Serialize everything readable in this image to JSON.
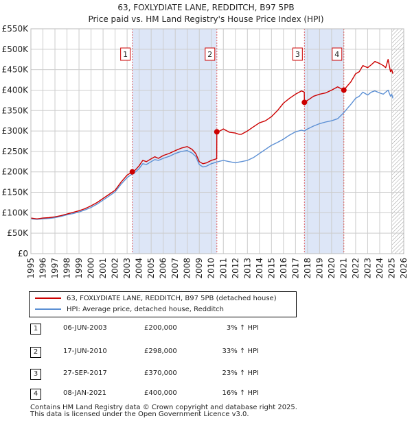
{
  "chart_data": {
    "type": "line",
    "title": "63, FOXLYDIATE LANE, REDDITCH, B97 5PB",
    "subtitle": "Price paid vs. HM Land Registry's House Price Index (HPI)",
    "xlim": [
      1995,
      2026
    ],
    "ylim": [
      0,
      550000
    ],
    "x_ticks": [
      "1995",
      "1996",
      "1997",
      "1998",
      "1999",
      "2000",
      "2001",
      "2002",
      "2003",
      "2004",
      "2005",
      "2006",
      "2007",
      "2008",
      "2009",
      "2010",
      "2011",
      "2012",
      "2013",
      "2014",
      "2015",
      "2016",
      "2017",
      "2018",
      "2019",
      "2020",
      "2021",
      "2022",
      "2023",
      "2024",
      "2025",
      "2026"
    ],
    "y_ticks": [
      {
        "value": 0,
        "label": "£0"
      },
      {
        "value": 50000,
        "label": "£50K"
      },
      {
        "value": 100000,
        "label": "£100K"
      },
      {
        "value": 150000,
        "label": "£150K"
      },
      {
        "value": 200000,
        "label": "£200K"
      },
      {
        "value": 250000,
        "label": "£250K"
      },
      {
        "value": 300000,
        "label": "£300K"
      },
      {
        "value": 350000,
        "label": "£350K"
      },
      {
        "value": 400000,
        "label": "£400K"
      },
      {
        "value": 450000,
        "label": "£450K"
      },
      {
        "value": 500000,
        "label": "£500K"
      },
      {
        "value": 550000,
        "label": "£550K"
      }
    ],
    "series": [
      {
        "name": "63, FOXLYDIATE LANE, REDDITCH, B97 5PB (detached house)",
        "color": "#cc0000",
        "x": [
          1995.0,
          1995.5,
          1996.0,
          1996.5,
          1997.0,
          1997.5,
          1998.0,
          1998.5,
          1999.0,
          1999.5,
          2000.0,
          2000.5,
          2001.0,
          2001.5,
          2002.0,
          2002.5,
          2003.0,
          2003.43,
          2003.7,
          2004.0,
          2004.3,
          2004.6,
          2005.0,
          2005.3,
          2005.6,
          2006.0,
          2006.5,
          2007.0,
          2007.5,
          2008.0,
          2008.4,
          2008.7,
          2009.0,
          2009.3,
          2009.6,
          2010.0,
          2010.45,
          2010.46,
          2010.7,
          2011.0,
          2011.5,
          2012.0,
          2012.3,
          2012.5,
          2013.0,
          2013.5,
          2014.0,
          2014.5,
          2015.0,
          2015.5,
          2016.0,
          2016.5,
          2017.0,
          2017.5,
          2017.73,
          2017.74,
          2018.0,
          2018.5,
          2019.0,
          2019.5,
          2020.0,
          2020.5,
          2021.02,
          2021.3,
          2021.6,
          2022.0,
          2022.3,
          2022.6,
          2023.0,
          2023.3,
          2023.6,
          2024.0,
          2024.3,
          2024.5,
          2024.7,
          2024.9,
          2025.0,
          2025.1
        ],
        "y": [
          87000,
          85000,
          87000,
          88000,
          90000,
          93000,
          97000,
          101000,
          105000,
          110000,
          117000,
          125000,
          135000,
          145000,
          155000,
          175000,
          192000,
          200000,
          205000,
          215000,
          228000,
          225000,
          232000,
          237000,
          233000,
          240000,
          245000,
          252000,
          258000,
          262000,
          255000,
          245000,
          225000,
          220000,
          222000,
          228000,
          232000,
          298000,
          300000,
          305000,
          297000,
          295000,
          292000,
          292000,
          300000,
          310000,
          320000,
          325000,
          335000,
          350000,
          368000,
          380000,
          390000,
          398000,
          395000,
          370000,
          375000,
          385000,
          390000,
          393000,
          400000,
          408000,
          400000,
          410000,
          420000,
          440000,
          445000,
          460000,
          455000,
          462000,
          470000,
          465000,
          460000,
          455000,
          475000,
          445000,
          450000,
          440000
        ]
      },
      {
        "name": "HPI: Average price, detached house, Redditch",
        "color": "#5b8fd4",
        "x": [
          1995.0,
          1995.5,
          1996.0,
          1996.5,
          1997.0,
          1997.5,
          1998.0,
          1998.5,
          1999.0,
          1999.5,
          2000.0,
          2000.5,
          2001.0,
          2001.5,
          2002.0,
          2002.5,
          2003.0,
          2003.43,
          2003.7,
          2004.0,
          2004.3,
          2004.6,
          2005.0,
          2005.3,
          2005.6,
          2006.0,
          2006.5,
          2007.0,
          2007.5,
          2008.0,
          2008.4,
          2008.7,
          2009.0,
          2009.3,
          2009.6,
          2010.0,
          2010.45,
          2010.7,
          2011.0,
          2011.5,
          2012.0,
          2012.3,
          2012.5,
          2013.0,
          2013.5,
          2014.0,
          2014.5,
          2015.0,
          2015.5,
          2016.0,
          2016.5,
          2017.0,
          2017.5,
          2017.73,
          2018.0,
          2018.5,
          2019.0,
          2019.5,
          2020.0,
          2020.5,
          2021.02,
          2021.3,
          2021.6,
          2022.0,
          2022.3,
          2022.6,
          2023.0,
          2023.3,
          2023.6,
          2024.0,
          2024.3,
          2024.5,
          2024.7,
          2024.9,
          2025.0,
          2025.1
        ],
        "y": [
          85000,
          84000,
          85000,
          86000,
          88000,
          91000,
          95000,
          98000,
          102000,
          107000,
          113000,
          121000,
          131000,
          141000,
          151000,
          170000,
          186000,
          195000,
          200000,
          208000,
          220000,
          218000,
          225000,
          230000,
          228000,
          233000,
          238000,
          245000,
          250000,
          252000,
          246000,
          238000,
          218000,
          212000,
          214000,
          220000,
          224000,
          226000,
          228000,
          225000,
          222000,
          224000,
          225000,
          228000,
          235000,
          245000,
          255000,
          265000,
          272000,
          280000,
          290000,
          298000,
          302000,
          300000,
          305000,
          312000,
          318000,
          322000,
          325000,
          330000,
          345000,
          355000,
          365000,
          380000,
          385000,
          395000,
          388000,
          395000,
          398000,
          393000,
          390000,
          395000,
          400000,
          385000,
          390000,
          380000
        ]
      }
    ],
    "sales": [
      {
        "label": "1",
        "x": 2003.43,
        "y": 200000
      },
      {
        "label": "2",
        "x": 2010.46,
        "y": 298000
      },
      {
        "label": "3",
        "x": 2017.74,
        "y": 370000
      },
      {
        "label": "4",
        "x": 2021.02,
        "y": 400000
      }
    ],
    "shaded_periods": [
      [
        2003.43,
        2010.46
      ],
      [
        2017.74,
        2021.02
      ]
    ],
    "hatched_from": 2025.0
  },
  "colors": {
    "property_line": "#cc0000",
    "hpi_line": "#5b8fd4",
    "shade": "#dde6f7",
    "grid": "#cccccc",
    "vline": "#e06060"
  },
  "legend": {
    "property_label": "63, FOXLYDIATE LANE, REDDITCH, B97 5PB (detached house)",
    "hpi_label": "HPI: Average price, detached house, Redditch"
  },
  "sales_table": [
    {
      "num": "1",
      "date": "06-JUN-2003",
      "price": "£200,000",
      "pct": "3% ↑ HPI"
    },
    {
      "num": "2",
      "date": "17-JUN-2010",
      "price": "£298,000",
      "pct": "33% ↑ HPI"
    },
    {
      "num": "3",
      "date": "27-SEP-2017",
      "price": "£370,000",
      "pct": "23% ↑ HPI"
    },
    {
      "num": "4",
      "date": "08-JAN-2021",
      "price": "£400,000",
      "pct": "16% ↑ HPI"
    }
  ],
  "footer": {
    "line1": "Contains HM Land Registry data © Crown copyright and database right 2025.",
    "line2": "This data is licensed under the Open Government Licence v3.0."
  }
}
